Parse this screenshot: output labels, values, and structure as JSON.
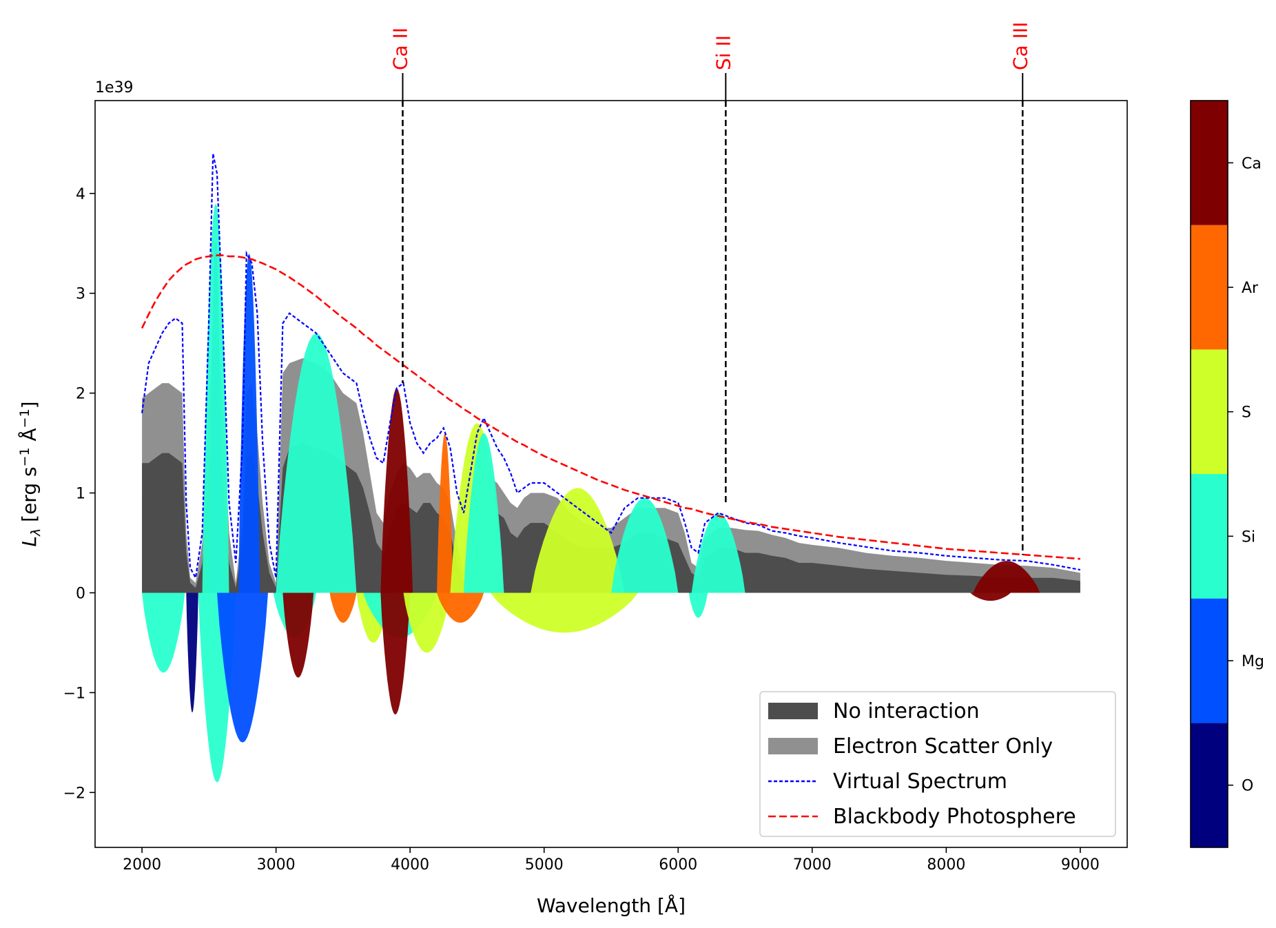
{
  "chart_data": {
    "type": "area",
    "xlabel": "Wavelength [Å]",
    "ylabel": "L_λ [erg s⁻¹ Å⁻¹]",
    "ylabel_parts": {
      "sym": "L",
      "sub": "λ",
      "open": " [erg s",
      "exp1": "−1",
      "mid": " Å",
      "exp2": "−1",
      "close": "]"
    },
    "offset_text": "1e39",
    "xlim": [
      1650,
      9350
    ],
    "ylim": [
      -2.55,
      4.93
    ],
    "xticks": [
      2000,
      3000,
      4000,
      5000,
      6000,
      7000,
      8000,
      9000
    ],
    "xtick_labels": [
      "2000",
      "3000",
      "4000",
      "5000",
      "6000",
      "7000",
      "8000",
      "9000"
    ],
    "yticks": [
      -2,
      -1,
      0,
      1,
      2,
      3,
      4
    ],
    "ytick_labels": [
      "−2",
      "−1",
      "0",
      "1",
      "2",
      "3",
      "4"
    ],
    "line_markers": [
      {
        "label": "Ca II",
        "x": 3945,
        "y_end": 2.1
      },
      {
        "label": "Si II",
        "x": 6355,
        "y_end": 0.9
      },
      {
        "label": "Ca III",
        "x": 8570,
        "y_end": 0.38
      }
    ],
    "x": [
      2000,
      2050,
      2100,
      2150,
      2200,
      2250,
      2300,
      2330,
      2360,
      2400,
      2450,
      2500,
      2530,
      2560,
      2600,
      2650,
      2700,
      2750,
      2780,
      2820,
      2860,
      2900,
      2950,
      3000,
      3050,
      3100,
      3200,
      3300,
      3400,
      3500,
      3600,
      3650,
      3700,
      3750,
      3800,
      3850,
      3900,
      3950,
      4000,
      4050,
      4100,
      4150,
      4200,
      4250,
      4300,
      4350,
      4400,
      4450,
      4500,
      4550,
      4600,
      4650,
      4700,
      4750,
      4800,
      4850,
      4900,
      5000,
      5100,
      5200,
      5300,
      5400,
      5500,
      5600,
      5700,
      5800,
      5900,
      6000,
      6050,
      6100,
      6150,
      6200,
      6300,
      6400,
      6500,
      6600,
      6700,
      6800,
      6900,
      7000,
      7200,
      7400,
      7600,
      7800,
      8000,
      8200,
      8400,
      8600,
      8800,
      9000
    ],
    "series": [
      {
        "name": "No interaction",
        "color": "#4d4d4d",
        "values": [
          1.3,
          1.3,
          1.35,
          1.4,
          1.4,
          1.35,
          1.3,
          0.4,
          0.1,
          0.05,
          0.3,
          1.2,
          1.55,
          1.55,
          1.2,
          0.3,
          0.05,
          0.5,
          1.35,
          1.4,
          1.1,
          0.6,
          0.2,
          0.05,
          1.25,
          1.45,
          1.5,
          1.45,
          1.4,
          1.3,
          1.2,
          1.05,
          0.8,
          0.5,
          0.4,
          0.65,
          0.85,
          0.9,
          0.85,
          0.8,
          0.9,
          0.9,
          0.8,
          0.75,
          0.6,
          0.3,
          0.1,
          0.5,
          0.8,
          0.85,
          0.85,
          0.8,
          0.75,
          0.6,
          0.55,
          0.65,
          0.7,
          0.7,
          0.6,
          0.5,
          0.45,
          0.45,
          0.45,
          0.5,
          0.6,
          0.6,
          0.55,
          0.5,
          0.35,
          0.2,
          0.15,
          0.35,
          0.45,
          0.45,
          0.4,
          0.4,
          0.37,
          0.35,
          0.3,
          0.3,
          0.27,
          0.24,
          0.22,
          0.2,
          0.18,
          0.17,
          0.15,
          0.15,
          0.15,
          0.12
        ]
      },
      {
        "name": "Electron Scatter Only",
        "color": "#909090",
        "values": [
          1.95,
          2.0,
          2.05,
          2.1,
          2.1,
          2.05,
          2.0,
          0.6,
          0.15,
          0.1,
          0.5,
          1.9,
          2.7,
          2.7,
          2.0,
          0.6,
          0.1,
          0.7,
          2.0,
          2.1,
          1.6,
          0.9,
          0.3,
          0.1,
          2.2,
          2.3,
          2.35,
          2.3,
          2.2,
          2.0,
          1.9,
          1.6,
          1.2,
          0.8,
          0.7,
          1.0,
          1.2,
          1.3,
          1.25,
          1.15,
          1.2,
          1.2,
          1.1,
          1.05,
          0.9,
          0.5,
          0.2,
          0.8,
          1.05,
          1.15,
          1.15,
          1.1,
          1.0,
          0.9,
          0.85,
          0.95,
          1.0,
          1.0,
          0.95,
          0.8,
          0.7,
          0.65,
          0.65,
          0.75,
          0.85,
          0.85,
          0.85,
          0.8,
          0.6,
          0.3,
          0.25,
          0.55,
          0.65,
          0.65,
          0.63,
          0.62,
          0.58,
          0.55,
          0.5,
          0.48,
          0.45,
          0.4,
          0.37,
          0.35,
          0.32,
          0.3,
          0.28,
          0.27,
          0.25,
          0.2
        ]
      },
      {
        "name": "Virtual Spectrum",
        "color": "#0000ff",
        "style": "dashed",
        "values": [
          1.8,
          2.3,
          2.45,
          2.6,
          2.7,
          2.75,
          2.7,
          0.9,
          0.25,
          0.15,
          0.6,
          2.8,
          4.4,
          4.2,
          2.8,
          0.9,
          0.3,
          1.5,
          3.4,
          3.3,
          2.8,
          1.5,
          0.5,
          0.15,
          2.7,
          2.8,
          2.7,
          2.6,
          2.4,
          2.2,
          2.1,
          1.8,
          1.55,
          1.35,
          1.3,
          1.7,
          2.05,
          2.1,
          1.7,
          1.5,
          1.4,
          1.5,
          1.55,
          1.65,
          1.45,
          1.0,
          0.8,
          1.2,
          1.6,
          1.75,
          1.6,
          1.45,
          1.35,
          1.2,
          1.0,
          1.05,
          1.1,
          1.1,
          1.0,
          0.9,
          0.8,
          0.7,
          0.6,
          0.85,
          0.95,
          0.95,
          0.95,
          0.9,
          0.7,
          0.45,
          0.4,
          0.7,
          0.8,
          0.75,
          0.7,
          0.68,
          0.62,
          0.6,
          0.57,
          0.55,
          0.5,
          0.46,
          0.42,
          0.4,
          0.37,
          0.35,
          0.33,
          0.32,
          0.28,
          0.23
        ]
      },
      {
        "name": "Blackbody Photosphere",
        "color": "#ff0000",
        "style": "dashed",
        "values": [
          2.65,
          2.79,
          2.92,
          3.03,
          3.13,
          3.2,
          3.26,
          3.29,
          3.31,
          3.34,
          3.36,
          3.37,
          3.38,
          3.38,
          3.38,
          3.37,
          3.37,
          3.36,
          3.35,
          3.34,
          3.32,
          3.3,
          3.27,
          3.24,
          3.2,
          3.16,
          3.07,
          2.97,
          2.86,
          2.75,
          2.65,
          2.59,
          2.54,
          2.48,
          2.43,
          2.38,
          2.33,
          2.28,
          2.23,
          2.18,
          2.13,
          2.08,
          2.03,
          1.98,
          1.93,
          1.89,
          1.84,
          1.8,
          1.75,
          1.71,
          1.67,
          1.63,
          1.59,
          1.55,
          1.51,
          1.48,
          1.44,
          1.37,
          1.31,
          1.25,
          1.19,
          1.13,
          1.08,
          1.03,
          0.99,
          0.95,
          0.91,
          0.87,
          0.85,
          0.84,
          0.82,
          0.8,
          0.77,
          0.74,
          0.71,
          0.69,
          0.66,
          0.64,
          0.62,
          0.6,
          0.56,
          0.53,
          0.5,
          0.47,
          0.44,
          0.42,
          0.4,
          0.38,
          0.36,
          0.34
        ]
      }
    ],
    "element_contributions": {
      "positive_bands": [
        {
          "element": "Mg",
          "from": 2500,
          "to": 2600,
          "peak": 3.5
        },
        {
          "element": "Si",
          "from": 2450,
          "to": 2650,
          "peak": 3.9
        },
        {
          "element": "Mg",
          "from": 2720,
          "to": 2880,
          "peak": 3.4
        },
        {
          "element": "Si",
          "from": 3000,
          "to": 3600,
          "peak": 2.6
        },
        {
          "element": "Ca",
          "from": 3780,
          "to": 4020,
          "peak": 2.05
        },
        {
          "element": "Ar",
          "from": 4200,
          "to": 4320,
          "peak": 1.6
        },
        {
          "element": "S",
          "from": 4300,
          "to": 4700,
          "peak": 1.7
        },
        {
          "element": "Si",
          "from": 4400,
          "to": 4700,
          "peak": 1.6
        },
        {
          "element": "S",
          "from": 4900,
          "to": 5600,
          "peak": 1.05
        },
        {
          "element": "Si",
          "from": 5500,
          "to": 6000,
          "peak": 0.95
        },
        {
          "element": "Si",
          "from": 6100,
          "to": 6500,
          "peak": 0.8
        },
        {
          "element": "Ca",
          "from": 8200,
          "to": 8700,
          "peak": 0.32
        }
      ],
      "negative_bands": [
        {
          "element": "Si",
          "from": 2000,
          "to": 2320,
          "depth": -0.8
        },
        {
          "element": "O",
          "from": 2330,
          "to": 2420,
          "depth": -1.2
        },
        {
          "element": "Si",
          "from": 2420,
          "to": 2700,
          "depth": -1.9
        },
        {
          "element": "Mg",
          "from": 2560,
          "to": 2940,
          "depth": -1.5
        },
        {
          "element": "Si",
          "from": 2980,
          "to": 3300,
          "depth": -0.45
        },
        {
          "element": "Ca",
          "from": 3050,
          "to": 3280,
          "depth": -0.85
        },
        {
          "element": "Ar",
          "from": 3400,
          "to": 3600,
          "depth": -0.3
        },
        {
          "element": "S",
          "from": 3600,
          "to": 3850,
          "depth": -0.5
        },
        {
          "element": "Si",
          "from": 3650,
          "to": 4200,
          "depth": -0.45
        },
        {
          "element": "Ca",
          "from": 3780,
          "to": 4000,
          "depth": -1.22
        },
        {
          "element": "S",
          "from": 3950,
          "to": 4300,
          "depth": -0.6
        },
        {
          "element": "Ar",
          "from": 4200,
          "to": 4550,
          "depth": -0.3
        },
        {
          "element": "S",
          "from": 4600,
          "to": 5700,
          "depth": -0.4
        },
        {
          "element": "Si",
          "from": 6080,
          "to": 6220,
          "depth": -0.25
        },
        {
          "element": "Ca",
          "from": 8180,
          "to": 8480,
          "depth": -0.08
        }
      ]
    },
    "legend": {
      "location": "lower right",
      "entries": [
        {
          "label": "No interaction",
          "kind": "patch",
          "color": "#4d4d4d"
        },
        {
          "label": "Electron Scatter Only",
          "kind": "patch",
          "color": "#909090"
        },
        {
          "label": "Virtual Spectrum",
          "kind": "line",
          "color": "#0000ff",
          "dash": "5,3"
        },
        {
          "label": "Blackbody Photosphere",
          "kind": "line",
          "color": "#ff0000",
          "dash": "11,5"
        }
      ]
    },
    "colorbar": {
      "categories": [
        "O",
        "Mg",
        "Si",
        "S",
        "Ar",
        "Ca"
      ],
      "colors": [
        "#00007f",
        "#0050ff",
        "#29ffce",
        "#ceff29",
        "#ff6800",
        "#7f0000"
      ]
    }
  }
}
